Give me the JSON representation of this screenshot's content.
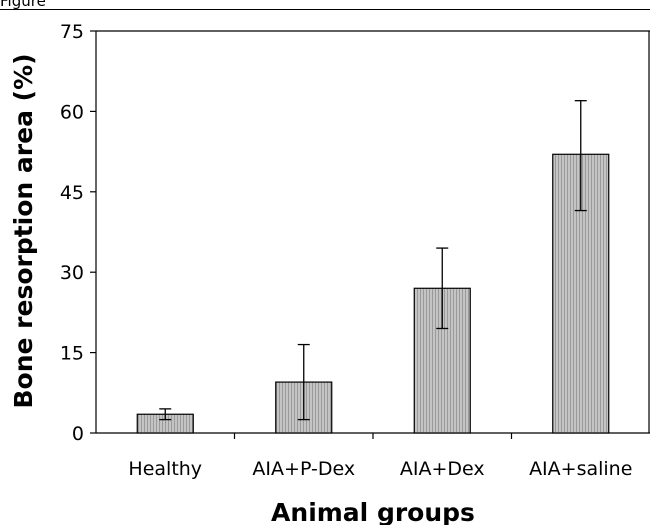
{
  "figure_label": "Figure",
  "chart_data": {
    "type": "bar",
    "categories": [
      "Healthy",
      "AIA+P-Dex",
      "AIA+Dex",
      "AIA+saline"
    ],
    "values": [
      3.5,
      9.5,
      27.0,
      52.0
    ],
    "error_low": [
      2.5,
      2.5,
      19.5,
      41.5
    ],
    "error_high": [
      4.5,
      16.5,
      34.5,
      62.0
    ],
    "xlabel": "Animal groups",
    "ylabel": "Bone resorption area (%)",
    "ylim": [
      0,
      75
    ],
    "yticks": [
      0,
      15,
      30,
      45,
      60,
      75
    ],
    "grid": false,
    "bar_fill": "#bdbdbd",
    "bar_stroke": "#000000"
  }
}
